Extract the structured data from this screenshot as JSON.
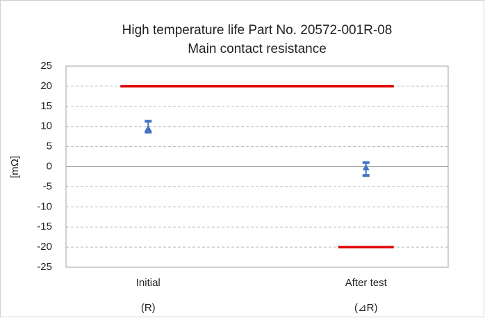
{
  "chart_data": {
    "type": "range",
    "title": "High temperature life Part No. 20572-001R-08",
    "subtitle": "Main contact resistance",
    "y_label": "[mΩ]",
    "categories": [
      "Initial",
      "After test"
    ],
    "category_sublabels": [
      "(R)",
      "(⊿R)"
    ],
    "ylim": [
      -25,
      25
    ],
    "yticks": [
      -25,
      -20,
      -15,
      -10,
      -5,
      0,
      5,
      10,
      15,
      20,
      25
    ],
    "grid": true,
    "series": [
      {
        "color": "#4472c4",
        "values": [
          9.5,
          -0.2
        ],
        "max": [
          11.3,
          1.0
        ],
        "min": [
          8.6,
          -2.2
        ]
      },
      {
        "color": "#e00000",
        "values": [
          20,
          20
        ]
      },
      {
        "color": "#e00000",
        "values": [
          null,
          -20
        ]
      }
    ]
  }
}
